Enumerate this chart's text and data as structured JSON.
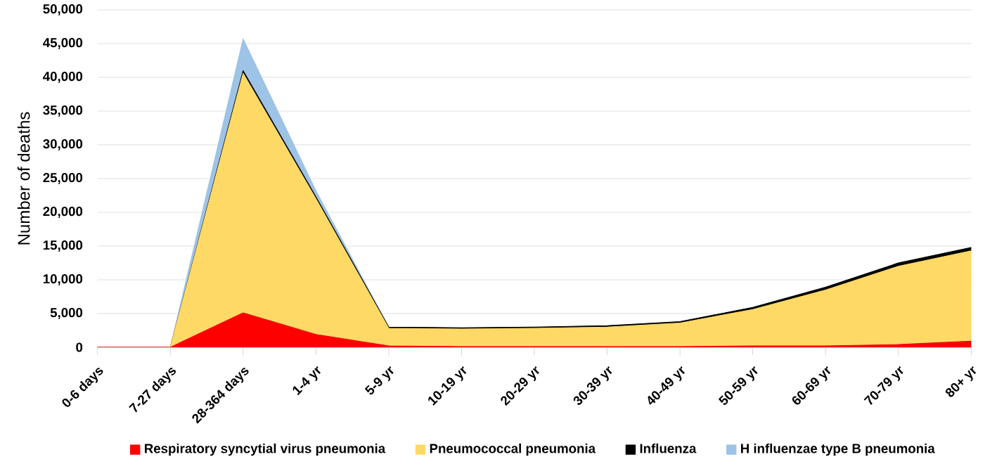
{
  "chart_data": {
    "type": "area",
    "stacked": true,
    "ylabel": "Number of deaths",
    "categories": [
      "0-6 days",
      "7-27 days",
      "28-364 days",
      "1-4 yr",
      "5-9 yr",
      "10-19 yr",
      "20-29 yr",
      "30-39 yr",
      "40-49 yr",
      "50-59 yr",
      "60-69 yr",
      "70-79 yr",
      "80+ yr"
    ],
    "series": [
      {
        "name": "Respiratory syncytial virus pneumonia",
        "color": "#ff0000",
        "values": [
          0,
          0,
          5100,
          1900,
          200,
          100,
          100,
          100,
          100,
          200,
          200,
          400,
          900
        ]
      },
      {
        "name": "Pneumococcal pneumonia",
        "color": "#ffd966",
        "values": [
          0,
          0,
          35500,
          20100,
          2600,
          2600,
          2700,
          2900,
          3500,
          5400,
          8300,
          11600,
          13400
        ]
      },
      {
        "name": "Influenza",
        "color": "#000000",
        "values": [
          0,
          0,
          400,
          300,
          200,
          200,
          200,
          200,
          200,
          300,
          400,
          500,
          500
        ]
      },
      {
        "name": "H influenzae type B pneumonia",
        "color": "#9dc3e6",
        "values": [
          0,
          0,
          4700,
          900,
          0,
          0,
          0,
          0,
          0,
          0,
          0,
          0,
          0
        ]
      }
    ],
    "ylim": [
      0,
      50000
    ],
    "yticks": [
      {
        "value": 0,
        "label": "0"
      },
      {
        "value": 5000,
        "label": "5,000"
      },
      {
        "value": 10000,
        "label": "10,000"
      },
      {
        "value": 15000,
        "label": "15,000"
      },
      {
        "value": 20000,
        "label": "20,000"
      },
      {
        "value": 25000,
        "label": "25,000"
      },
      {
        "value": 30000,
        "label": "30,000"
      },
      {
        "value": 35000,
        "label": "35,000"
      },
      {
        "value": 40000,
        "label": "40,000"
      },
      {
        "value": 45000,
        "label": "45,000"
      },
      {
        "value": 50000,
        "label": "50,000"
      }
    ],
    "grid": "y",
    "legend": "bottom",
    "marker": "none"
  }
}
